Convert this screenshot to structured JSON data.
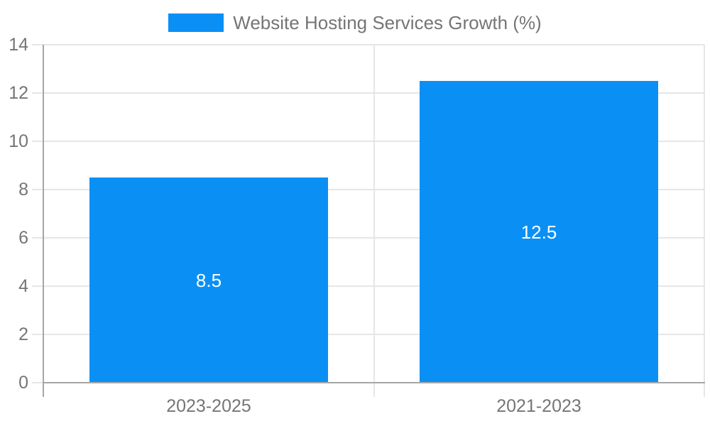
{
  "legend": {
    "label": "Website Hosting Services Growth (%)"
  },
  "chart_data": {
    "type": "bar",
    "title": "",
    "categories": [
      "2023-2025",
      "2021-2023"
    ],
    "series": [
      {
        "name": "Website Hosting Services Growth (%)",
        "values": [
          8.5,
          12.5
        ]
      }
    ],
    "data_labels": [
      "8.5",
      "12.5"
    ],
    "xlabel": "",
    "ylabel": "",
    "ylim": [
      0,
      14
    ],
    "yticks": [
      0,
      2,
      4,
      6,
      8,
      10,
      12,
      14
    ],
    "grid": true,
    "legend_position": "top",
    "colors": {
      "bar": "#0a90f5",
      "axis": "#a6a6a6",
      "gridline": "#e6e6e6",
      "tick_text": "#757575",
      "value_label": "#ffffff"
    }
  }
}
